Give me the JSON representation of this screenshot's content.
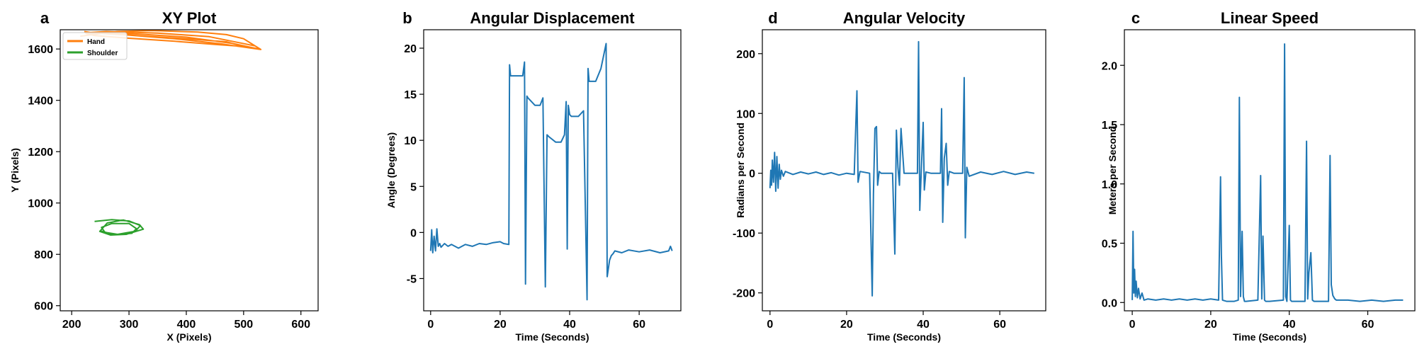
{
  "chart_data": [
    {
      "panel_letter": "a",
      "type": "line",
      "title": "XY Plot",
      "xlabel": "X (Pixels)",
      "ylabel": "Y (Pixels)",
      "xlim": [
        180,
        630
      ],
      "ylim": [
        580,
        1675
      ],
      "xticks": [
        200,
        300,
        400,
        500,
        600
      ],
      "yticks": [
        600,
        800,
        1000,
        1200,
        1400,
        1600
      ],
      "grid": false,
      "legend": "top-left",
      "series": [
        {
          "name": "Hand",
          "color": "#ff7f0e",
          "x": [
            215,
            280,
            340,
            420,
            470,
            500,
            530,
            480,
            400,
            320,
            260,
            225,
            240,
            300,
            380,
            450,
            500,
            470,
            400,
            330,
            260,
            228,
            260,
            350,
            440,
            520,
            530,
            460,
            380,
            300,
            240,
            222
          ],
          "y": [
            1650,
            1668,
            1672,
            1666,
            1656,
            1640,
            1598,
            1622,
            1646,
            1658,
            1664,
            1660,
            1652,
            1642,
            1630,
            1618,
            1610,
            1628,
            1640,
            1650,
            1660,
            1664,
            1668,
            1662,
            1648,
            1612,
            1598,
            1620,
            1640,
            1654,
            1662,
            1668
          ]
        },
        {
          "name": "Shoulder",
          "color": "#2ca02c",
          "x": [
            240,
            270,
            300,
            320,
            311,
            280,
            258,
            252,
            270,
            300,
            313,
            305,
            275,
            250,
            262,
            290,
            318,
            325,
            295,
            268,
            248
          ],
          "y": [
            928,
            935,
            930,
            912,
            890,
            878,
            886,
            905,
            920,
            920,
            900,
            882,
            876,
            892,
            922,
            934,
            916,
            898,
            878,
            875,
            890
          ]
        }
      ]
    },
    {
      "panel_letter": "b",
      "type": "line",
      "title": "Angular Displacement",
      "xlabel": "Time (Seconds)",
      "ylabel": "Angle (Degrees)",
      "xlim": [
        -2,
        72
      ],
      "ylim": [
        -8.5,
        22
      ],
      "xticks": [
        0,
        20,
        40,
        60
      ],
      "yticks": [
        -5,
        0,
        5,
        10,
        15,
        20
      ],
      "grid": false,
      "series": [
        {
          "color": "#1f77b4",
          "x": [
            0,
            0.3,
            0.6,
            1,
            1.4,
            1.8,
            2.2,
            2.6,
            3,
            4,
            5,
            6,
            8,
            10,
            12,
            14,
            16,
            18,
            20,
            21,
            22.5,
            22.7,
            23,
            25,
            26.5,
            27,
            27.3,
            27.7,
            28,
            30,
            31.5,
            32.3,
            33,
            33.5,
            34,
            36,
            37.5,
            38.5,
            39,
            39.3,
            39.6,
            40,
            40.5,
            42.5,
            44,
            45,
            45.3,
            45.6,
            46,
            47.5,
            49,
            50.5,
            50.8,
            51.5,
            52,
            52.5,
            53,
            55,
            57,
            60,
            63,
            66,
            68.5,
            69,
            69.5
          ],
          "y": [
            -2,
            0.3,
            -2.2,
            -0.4,
            -2,
            0.4,
            -1.5,
            -1.2,
            -1.6,
            -1.2,
            -1.5,
            -1.3,
            -1.7,
            -1.3,
            -1.5,
            -1.2,
            -1.3,
            -1.1,
            -1.0,
            -1.2,
            -1.3,
            18.2,
            17,
            17,
            17,
            18.5,
            -5.6,
            14.8,
            14.6,
            13.8,
            13.8,
            14.6,
            -5.9,
            10.6,
            10.4,
            9.8,
            9.8,
            10.6,
            14.2,
            -1.8,
            13.8,
            12.8,
            12.6,
            12.6,
            13.2,
            -7.3,
            17.8,
            16.4,
            16.4,
            16.4,
            17.8,
            20.5,
            -4.8,
            -3.0,
            -2.5,
            -2.3,
            -2.0,
            -2.2,
            -1.9,
            -2.1,
            -1.9,
            -2.2,
            -2.0,
            -1.5,
            -2.0
          ]
        }
      ]
    },
    {
      "panel_letter": "d",
      "type": "line",
      "title": "Angular Velocity",
      "xlabel": "Time (Seconds)",
      "ylabel": "Radians per Second",
      "xlim": [
        -2,
        72
      ],
      "ylim": [
        -230,
        240
      ],
      "xticks": [
        0,
        20,
        40,
        60
      ],
      "yticks": [
        -200,
        -100,
        0,
        100,
        200
      ],
      "grid": false,
      "series": [
        {
          "color": "#1f77b4",
          "x": [
            0,
            0.2,
            0.4,
            0.6,
            0.9,
            1.2,
            1.5,
            1.8,
            2.1,
            2.4,
            2.7,
            3,
            3.5,
            4,
            6,
            8,
            10,
            12,
            14,
            16,
            18,
            20,
            22,
            22.4,
            22.7,
            23,
            23.5,
            26,
            26.7,
            27,
            27.4,
            27.8,
            28.1,
            28.5,
            29,
            32,
            32.6,
            33,
            33.4,
            33.8,
            34.2,
            35,
            38.5,
            38.8,
            39.1,
            39.5,
            40,
            40.3,
            40.7,
            42,
            44.5,
            44.8,
            45.1,
            45.5,
            46,
            46.4,
            46.8,
            48,
            50.3,
            50.7,
            51,
            51.4,
            52,
            55,
            58,
            61,
            64,
            67,
            69
          ],
          "y": [
            -25,
            5,
            -20,
            22,
            -15,
            35,
            -30,
            28,
            -25,
            15,
            -10,
            5,
            -5,
            3,
            -2,
            2,
            -1,
            2,
            -2,
            1,
            -3,
            0,
            -2,
            80,
            138,
            -15,
            3,
            0,
            -205,
            -35,
            75,
            78,
            -20,
            3,
            0,
            0,
            -135,
            72,
            10,
            -20,
            75,
            0,
            0,
            220,
            -62,
            3,
            85,
            -28,
            2,
            0,
            0,
            108,
            -82,
            25,
            50,
            -20,
            3,
            0,
            0,
            160,
            -108,
            10,
            -5,
            2,
            -2,
            3,
            -2,
            2,
            0
          ]
        }
      ]
    },
    {
      "panel_letter": "c",
      "type": "line",
      "title": "Linear Speed",
      "xlabel": "Time (Seconds)",
      "ylabel": "Meters per Second",
      "xlim": [
        -2,
        72
      ],
      "ylim": [
        -0.07,
        2.3
      ],
      "xticks": [
        0,
        20,
        40,
        60
      ],
      "yticks": [
        0.0,
        0.5,
        1.0,
        1.5,
        2.0
      ],
      "grid": false,
      "series": [
        {
          "color": "#1f77b4",
          "x": [
            0,
            0.2,
            0.4,
            0.6,
            0.8,
            1,
            1.3,
            1.6,
            2,
            2.5,
            3,
            4,
            6,
            8,
            10,
            12,
            14,
            16,
            18,
            20,
            22,
            22.3,
            22.5,
            22.7,
            23,
            24,
            26,
            27,
            27.3,
            27.6,
            28,
            28.3,
            28.6,
            29,
            32,
            32.7,
            33,
            33.3,
            33.7,
            34,
            34.4,
            35,
            38.5,
            38.8,
            39.1,
            39.4,
            40,
            40.3,
            40.6,
            41,
            44,
            44.4,
            44.7,
            45,
            45.5,
            45.9,
            46.3,
            47,
            50,
            50.4,
            50.7,
            51.1,
            51.6,
            52,
            55,
            58,
            61,
            64,
            67,
            69
          ],
          "y": [
            0.02,
            0.6,
            0.08,
            0.28,
            0.05,
            0.18,
            0.04,
            0.12,
            0.03,
            0.08,
            0.02,
            0.03,
            0.02,
            0.03,
            0.02,
            0.03,
            0.02,
            0.03,
            0.02,
            0.03,
            0.02,
            0.62,
            1.06,
            0.4,
            0.02,
            0.01,
            0.01,
            0.02,
            1.73,
            0.05,
            0.6,
            0.05,
            0.01,
            0.01,
            0.02,
            1.07,
            0.03,
            0.56,
            0.02,
            0.01,
            0.01,
            0.01,
            0.02,
            2.18,
            0.05,
            0.01,
            0.65,
            0.02,
            0.01,
            0.01,
            0.01,
            1.36,
            0.03,
            0.25,
            0.42,
            0.02,
            0.01,
            0.01,
            0.01,
            1.24,
            0.15,
            0.06,
            0.03,
            0.02,
            0.02,
            0.01,
            0.02,
            0.01,
            0.02,
            0.02
          ]
        }
      ]
    }
  ]
}
